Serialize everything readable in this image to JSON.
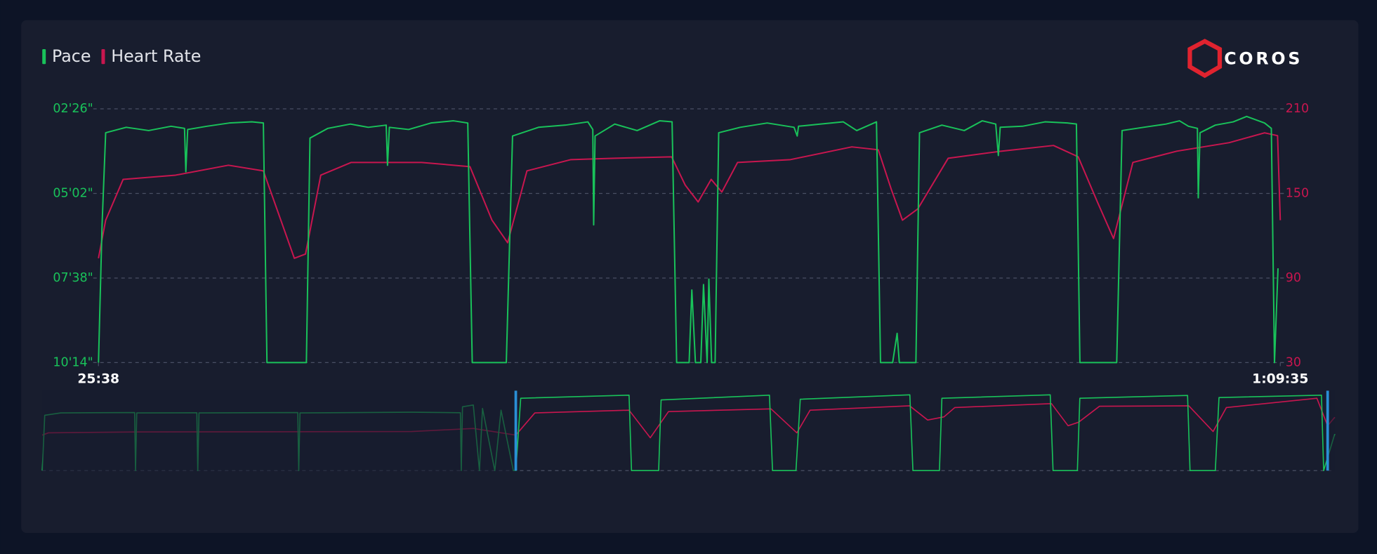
{
  "logo": "COROS",
  "chart_data": [
    {
      "type": "line",
      "xlim": [
        1538,
        4175
      ],
      "xticks": [
        {
          "value": 1538,
          "label": "25:38"
        },
        {
          "value": 4175,
          "label": "1:09:35"
        }
      ],
      "ylim": [
        614,
        146
      ],
      "yticks": [
        {
          "value": 146,
          "label": "02'26\""
        },
        {
          "value": 302,
          "label": "05'02\""
        },
        {
          "value": 458,
          "label": "07'38\""
        },
        {
          "value": 614,
          "label": "10'14\""
        }
      ],
      "y2lim": [
        30,
        210
      ],
      "y2ticks": [
        30,
        90,
        150,
        210
      ],
      "grid": true,
      "legend": "top-left",
      "series": [
        {
          "name": "Pace",
          "color": "#19c25a",
          "axis": "y",
          "x": [
            1538,
            1546,
            1554,
            1600,
            1650,
            1700,
            1730,
            1733,
            1737,
            1780,
            1830,
            1880,
            1906,
            1914,
            2002,
            2010,
            2050,
            2100,
            2140,
            2180,
            2183,
            2187,
            2230,
            2280,
            2330,
            2362,
            2372,
            2448,
            2462,
            2520,
            2580,
            2630,
            2641,
            2643,
            2646,
            2690,
            2740,
            2790,
            2818,
            2828,
            2856,
            2862,
            2870,
            2882,
            2888,
            2896,
            2900,
            2906,
            2914,
            2922,
            2970,
            3030,
            3090,
            3097,
            3100,
            3150,
            3200,
            3230,
            3274,
            3283,
            3310,
            3320,
            3325,
            3362,
            3370,
            3420,
            3470,
            3510,
            3540,
            3546,
            3550,
            3600,
            3650,
            3700,
            3720,
            3728,
            3810,
            3822,
            3870,
            3920,
            3950,
            3970,
            3990,
            3992,
            3996,
            4030,
            4070,
            4100,
            4140,
            4155,
            4162,
            4170
          ],
          "values": [
            614,
            360,
            190,
            180,
            186,
            178,
            182,
            262,
            184,
            178,
            172,
            170,
            172,
            614,
            614,
            200,
            182,
            174,
            180,
            176,
            250,
            180,
            184,
            172,
            168,
            172,
            614,
            614,
            196,
            180,
            176,
            170,
            184,
            360,
            196,
            174,
            186,
            168,
            170,
            614,
            614,
            480,
            614,
            614,
            470,
            614,
            460,
            614,
            614,
            190,
            180,
            172,
            180,
            196,
            178,
            174,
            170,
            186,
            170,
            614,
            614,
            560,
            614,
            614,
            190,
            176,
            186,
            168,
            174,
            232,
            180,
            178,
            170,
            172,
            174,
            614,
            614,
            186,
            180,
            174,
            168,
            178,
            182,
            310,
            190,
            176,
            170,
            160,
            172,
            182,
            614,
            440
          ]
        },
        {
          "name": "Heart Rate",
          "color": "#c8164f",
          "axis": "y2",
          "x": [
            1538,
            1554,
            1593,
            1710,
            1828,
            1906,
            1945,
            1975,
            2000,
            2034,
            2102,
            2259,
            2367,
            2416,
            2451,
            2494,
            2592,
            2690,
            2817,
            2847,
            2876,
            2905,
            2929,
            2964,
            3082,
            3219,
            3278,
            3307,
            3332,
            3366,
            3434,
            3552,
            3669,
            3724,
            3767,
            3803,
            3846,
            3944,
            4061,
            4140,
            4169,
            4175
          ],
          "values": [
            104,
            131,
            160,
            163,
            170,
            166,
            131,
            104,
            107,
            163,
            172,
            172,
            169,
            131,
            115,
            166,
            174,
            175,
            176,
            156,
            144,
            160,
            151,
            172,
            174,
            183,
            181,
            153,
            131,
            139,
            175,
            180,
            184,
            176,
            144,
            118,
            172,
            180,
            186,
            193,
            191,
            131
          ]
        }
      ]
    },
    {
      "type": "line",
      "xlim": [
        0,
        4198
      ],
      "ylim": [
        614,
        146
      ],
      "y2lim": [
        30,
        210
      ],
      "selection": [
        1538,
        4175
      ],
      "series": [
        {
          "name": "Pace",
          "color": "#19c25a",
          "axis": "y",
          "x": [
            0,
            8,
            60,
            300,
            303,
            307,
            502,
            505,
            509,
            830,
            833,
            837,
            1200,
            1358,
            1361,
            1365,
            1400,
            1420,
            1430,
            1470,
            1490,
            1530,
            1538,
            1554,
            1906,
            1914,
            2002,
            2010,
            2362,
            2372,
            2448,
            2462,
            2818,
            2828,
            2914,
            2922,
            3274,
            3283,
            3362,
            3370,
            3720,
            3728,
            3810,
            3822,
            4155,
            4162,
            4198
          ],
          "values": [
            614,
            290,
            276,
            274,
            614,
            276,
            275,
            614,
            276,
            274,
            614,
            276,
            272,
            275,
            614,
            240,
            230,
            614,
            250,
            614,
            260,
            614,
            614,
            190,
            172,
            614,
            614,
            200,
            172,
            614,
            614,
            196,
            170,
            614,
            614,
            190,
            170,
            614,
            614,
            190,
            174,
            614,
            614,
            186,
            172,
            614,
            400
          ]
        },
        {
          "name": "Heart Rate",
          "color": "#c8164f",
          "axis": "y2",
          "x": [
            0,
            20,
            300,
            1200,
            1400,
            1538,
            1600,
            1906,
            1975,
            2034,
            2367,
            2451,
            2494,
            2817,
            2876,
            2929,
            2964,
            3278,
            3332,
            3366,
            3434,
            3724,
            3803,
            3846,
            4140,
            4175,
            4198
          ],
          "values": [
            110,
            115,
            117,
            118,
            125,
            110,
            160,
            166,
            104,
            163,
            169,
            115,
            166,
            176,
            144,
            151,
            172,
            181,
            131,
            139,
            175,
            176,
            118,
            172,
            193,
            131,
            150
          ]
        }
      ]
    }
  ]
}
